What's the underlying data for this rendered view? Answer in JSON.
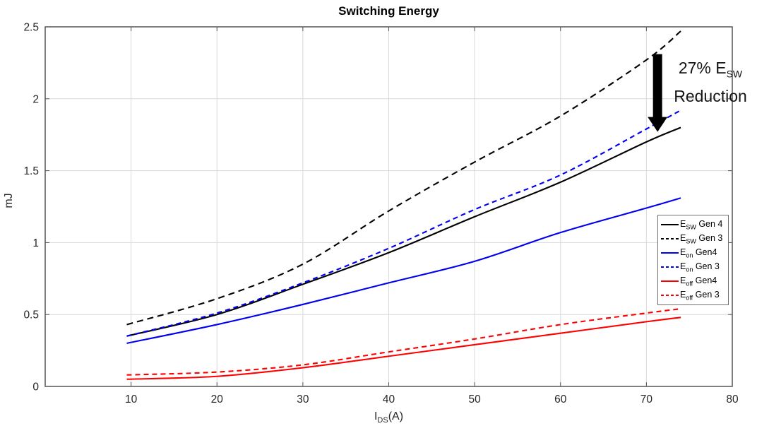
{
  "title": "Switching Energy",
  "colors": {
    "grid": "#d9d9d9",
    "axis": "#555555",
    "tick_text": "#262626",
    "black_series": "#000000",
    "blue_series": "#0000f0",
    "red_series": "#ff0000",
    "annotation_arrow": "#000000"
  },
  "chart_data": {
    "type": "line",
    "title": "Switching Energy",
    "xlabel": {
      "pre": "I",
      "sub": "DS",
      "post": "(A)"
    },
    "ylabel": "mJ",
    "xlim": [
      0,
      80
    ],
    "ylim": [
      0,
      2.5
    ],
    "xticks": [
      10,
      20,
      30,
      40,
      50,
      60,
      70,
      80
    ],
    "xtick_labels": [
      "10",
      "20",
      "30",
      "40",
      "50",
      "60",
      "70",
      "80"
    ],
    "yticks": [
      0,
      0.5,
      1,
      1.5,
      2,
      2.5
    ],
    "ytick_labels": [
      "0",
      "0.5",
      "1",
      "1.5",
      "2",
      "2.5"
    ],
    "xgrid": [
      10,
      20,
      30,
      40,
      50,
      60,
      70
    ],
    "ygrid": [
      0.5,
      1,
      1.5,
      2
    ],
    "grid": true,
    "legend_position": "inside-right-middle",
    "x": [
      9.5,
      20,
      30,
      40,
      50,
      60,
      70,
      74
    ],
    "series": [
      {
        "name": "E_SW Gen 4",
        "label_pre": "E",
        "label_sub": "SW",
        "label_post": " Gen 4",
        "color": "#000000",
        "style": "solid",
        "dash": "",
        "values": [
          0.35,
          0.5,
          0.71,
          0.93,
          1.18,
          1.42,
          1.7,
          1.8
        ]
      },
      {
        "name": "E_SW Gen 3",
        "label_pre": "E",
        "label_sub": "SW",
        "label_post": " Gen 3",
        "color": "#000000",
        "style": "dashed",
        "dash": "9 6",
        "values": [
          0.43,
          0.61,
          0.85,
          1.22,
          1.56,
          1.88,
          2.27,
          2.47
        ]
      },
      {
        "name": "E_on Gen4",
        "label_pre": "E",
        "label_sub": "on",
        "label_post": " Gen4",
        "color": "#0000f0",
        "style": "solid",
        "dash": "",
        "values": [
          0.3,
          0.43,
          0.57,
          0.72,
          0.87,
          1.07,
          1.24,
          1.31
        ]
      },
      {
        "name": "E_on Gen 3",
        "label_pre": "E",
        "label_sub": "on",
        "label_post": " Gen 3",
        "color": "#0000f0",
        "style": "dashed",
        "dash": "7 5",
        "values": [
          0.35,
          0.51,
          0.72,
          0.96,
          1.23,
          1.47,
          1.79,
          1.92
        ]
      },
      {
        "name": "E_off Gen4",
        "label_pre": "E",
        "label_sub": "off",
        "label_post": " Gen4",
        "color": "#ff0000",
        "style": "solid",
        "dash": "",
        "values": [
          0.05,
          0.07,
          0.13,
          0.21,
          0.29,
          0.37,
          0.45,
          0.48
        ]
      },
      {
        "name": "E_off Gen 3",
        "label_pre": "E",
        "label_sub": "off",
        "label_post": " Gen 3",
        "color": "#ff0000",
        "style": "dashed",
        "dash": "7 5",
        "values": [
          0.08,
          0.1,
          0.15,
          0.24,
          0.33,
          0.43,
          0.51,
          0.54
        ]
      }
    ],
    "annotation": {
      "line1_pre": "27% E",
      "line1_sub": "SW",
      "line2": "Reduction",
      "arrow": {
        "x": 71.3,
        "y_from": 2.31,
        "y_to": 1.77
      }
    }
  }
}
